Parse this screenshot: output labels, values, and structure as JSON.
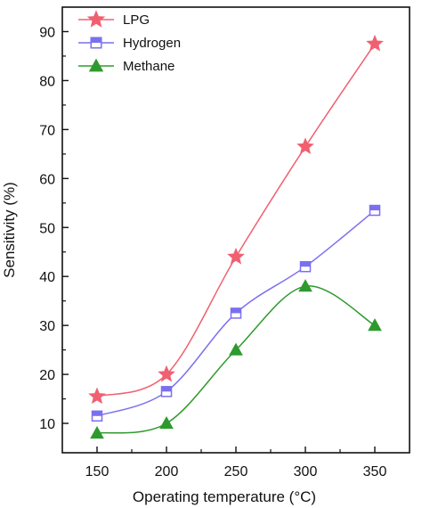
{
  "chart_data": {
    "type": "line",
    "title": "",
    "xlabel": "Operating temperature (°C)",
    "ylabel": "Sensitivity (%)",
    "x": [
      150,
      200,
      250,
      300,
      350
    ],
    "xlim": [
      125,
      375
    ],
    "ylim": [
      4,
      95
    ],
    "xticks": [
      150,
      200,
      250,
      300,
      350
    ],
    "yticks": [
      10,
      20,
      30,
      40,
      50,
      60,
      70,
      80,
      90
    ],
    "grid": false,
    "legend_position": "top-left",
    "series": [
      {
        "name": "LPG",
        "values": [
          15.5,
          20,
          44,
          66.5,
          87.5
        ],
        "color": "#f06070",
        "marker": "star"
      },
      {
        "name": "Hydrogen",
        "values": [
          11.5,
          16.5,
          32.5,
          42,
          53.5
        ],
        "color": "#7b6ff0",
        "marker": "square"
      },
      {
        "name": "Methane",
        "values": [
          8,
          10,
          25,
          38,
          30
        ],
        "color": "#2e9a2e",
        "marker": "triangle"
      }
    ]
  }
}
